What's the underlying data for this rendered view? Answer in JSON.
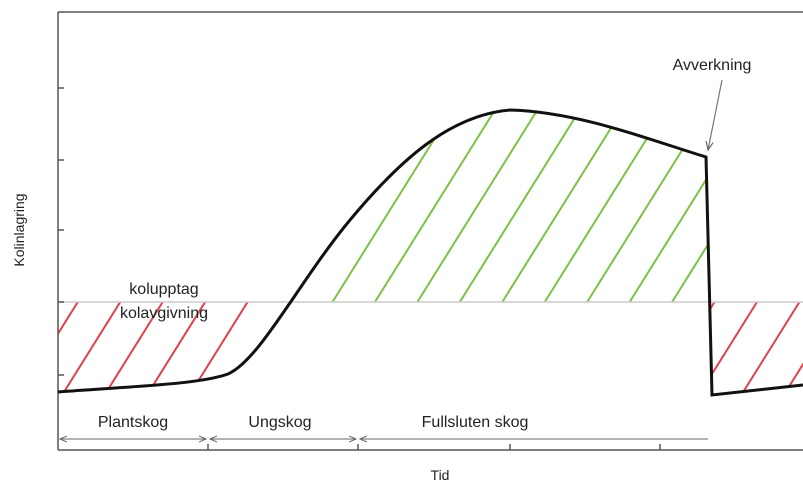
{
  "axes": {
    "y_label": "Kolinlagring",
    "x_label": "Tid"
  },
  "labels": {
    "uptake": "kolupptag",
    "release": "kolavgivning",
    "harvest": "Avverkning"
  },
  "phases": [
    "Plantskog",
    "Ungskog",
    "Fullsluten skog"
  ]
}
